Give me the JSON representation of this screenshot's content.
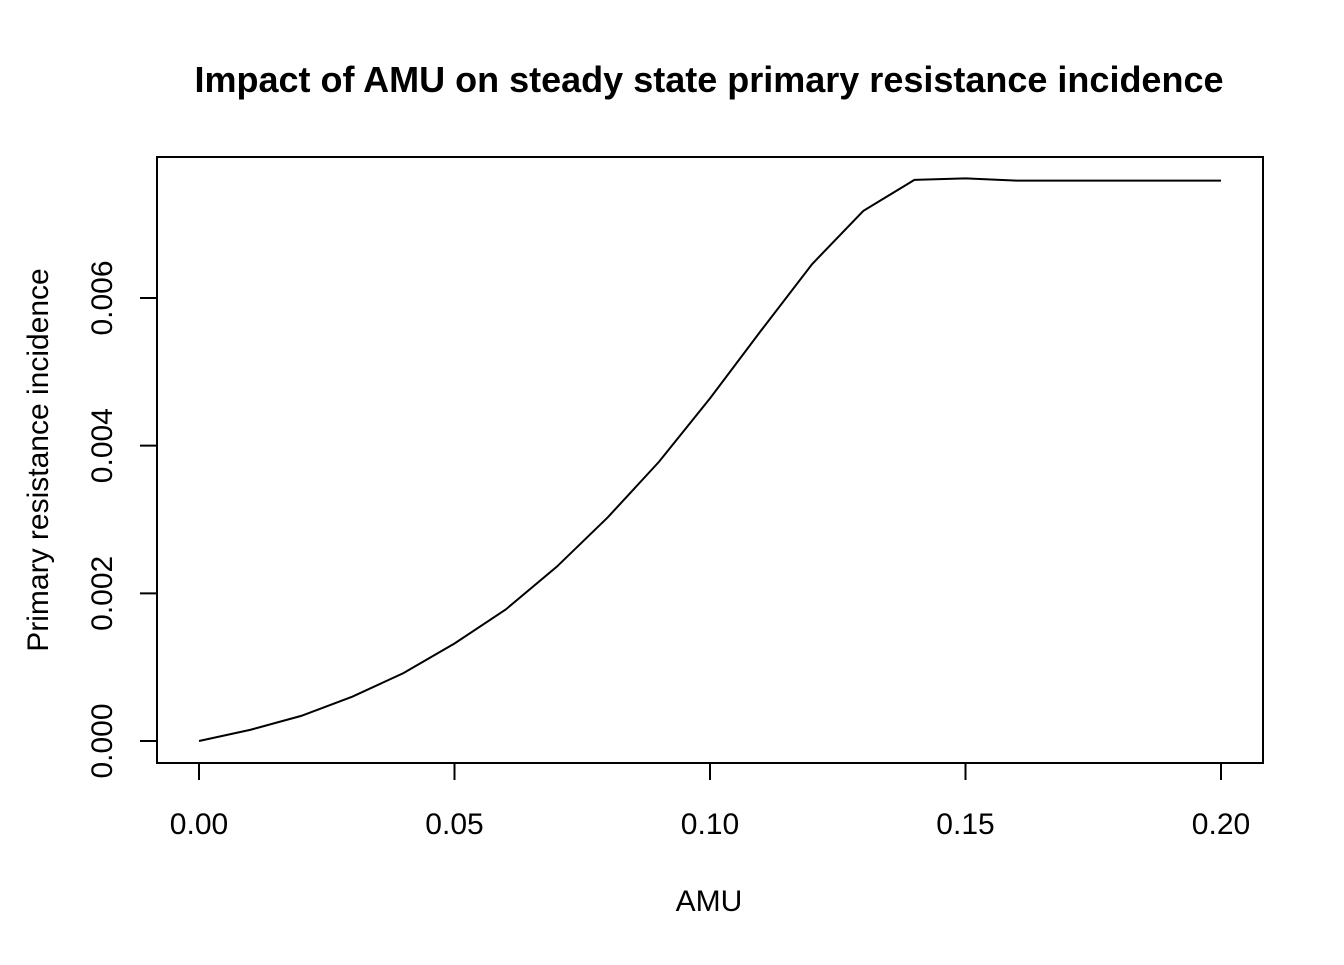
{
  "chart_data": {
    "type": "line",
    "title": "Impact of AMU on steady state primary resistance incidence",
    "xlabel": "AMU",
    "ylabel": "Primary resistance incidence",
    "xlim": [
      0.0,
      0.2
    ],
    "ylim": [
      0.0,
      0.0076
    ],
    "x_ticks": [
      0.0,
      0.05,
      0.1,
      0.15,
      0.2
    ],
    "x_tick_labels": [
      "0.00",
      "0.05",
      "0.10",
      "0.15",
      "0.20"
    ],
    "y_ticks": [
      0.0,
      0.002,
      0.004,
      0.006
    ],
    "y_tick_labels": [
      "0.000",
      "0.002",
      "0.004",
      "0.006"
    ],
    "grid": false,
    "series": [
      {
        "x": [
          0.0,
          0.01,
          0.02,
          0.03,
          0.04,
          0.05,
          0.06,
          0.07,
          0.08,
          0.09,
          0.1,
          0.11,
          0.12,
          0.13,
          0.14,
          0.15,
          0.16,
          0.17,
          0.18,
          0.19,
          0.2
        ],
        "y": [
          0.0,
          0.00015,
          0.00034,
          0.0006,
          0.00092,
          0.00132,
          0.00178,
          0.00236,
          0.00303,
          0.00378,
          0.00464,
          0.00556,
          0.00646,
          0.00718,
          0.0076,
          0.00762,
          0.00759,
          0.00759,
          0.00759,
          0.00759,
          0.00759
        ],
        "color": "#000000"
      }
    ]
  }
}
